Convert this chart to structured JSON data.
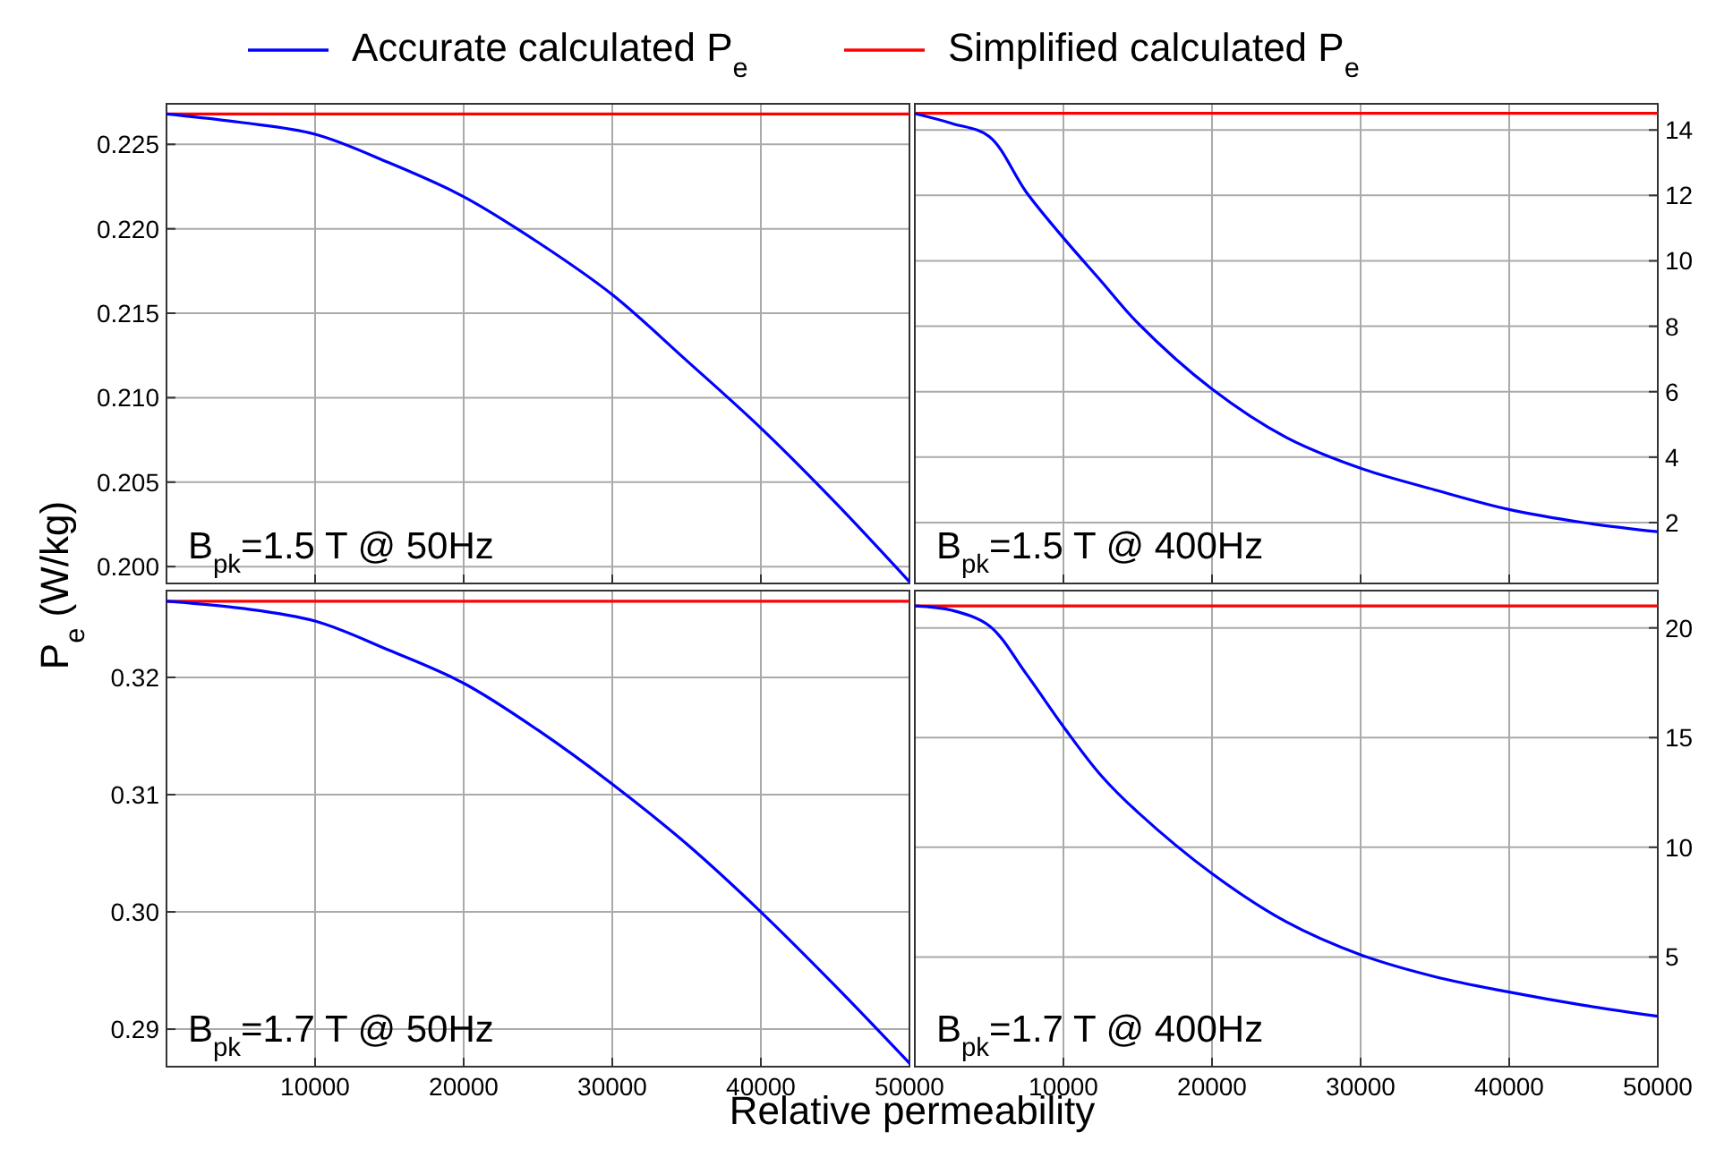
{
  "chart_data": [
    {
      "type": "line",
      "ylabel": "P$_{e}$ (W/kg)",
      "annotations": [
        "B$_{pk}$=1.5 T @ 50Hz"
      ],
      "legend": "top",
      "grid": true,
      "tick_labels": "y",
      "xlim": [
        0,
        50000
      ],
      "xticks": [
        10000,
        20000,
        30000,
        40000,
        50000
      ],
      "ylim": [
        0.199,
        0.2274
      ],
      "yticks": [
        {
          "value": 0.2,
          "label": "0.200"
        },
        0.205,
        {
          "value": 0.21,
          "label": "0.210"
        },
        0.215,
        {
          "value": 0.22,
          "label": "0.220"
        },
        0.225
      ],
      "series": [
        {
          "name": "Accurate calculated P$_{e}$",
          "color": "#0000ff",
          "x": [
            0,
            5000,
            10000,
            15000,
            20000,
            25000,
            30000,
            35000,
            40000,
            45000,
            50000
          ],
          "values": [
            0.2268,
            0.2263,
            0.2256,
            0.2239,
            0.2219,
            0.2192,
            0.2161,
            0.2122,
            0.2082,
            0.2038,
            0.1991
          ]
        },
        {
          "name": "Simplified calculated P$_{e}$",
          "color": "#ff0000",
          "x": [
            0,
            50000
          ],
          "values": [
            0.2268,
            0.2268
          ]
        }
      ]
    },
    {
      "type": "line",
      "annotations": [
        "B$_{pk}$=1.5 T @ 400Hz"
      ],
      "grid": true,
      "tick_labels": "y",
      "xlim": [
        0,
        50000
      ],
      "xticks": [
        10000,
        20000,
        30000,
        40000,
        50000
      ],
      "ylim": [
        0.14,
        14.8
      ],
      "yticks": [
        2,
        4,
        6,
        8,
        10,
        12,
        14
      ],
      "series": [
        {
          "color": "#0000ff",
          "x": [
            0,
            2500,
            5000,
            7500,
            10000,
            12500,
            15000,
            20000,
            25000,
            30000,
            35000,
            40000,
            45000,
            50000
          ],
          "values": [
            14.5,
            14.2,
            13.8,
            12.1,
            10.7,
            9.4,
            8.1,
            6.08,
            4.6,
            3.66,
            3.0,
            2.4,
            2.0,
            1.72
          ]
        },
        {
          "color": "#ff0000",
          "x": [
            0,
            50000
          ],
          "values": [
            14.51,
            14.51
          ]
        }
      ]
    },
    {
      "type": "line",
      "xlabel": "Relative permeability",
      "annotations": [
        "B$_{pk}$=1.7 T @ 50Hz"
      ],
      "grid": true,
      "xlim": [
        0,
        50000
      ],
      "xticks": [
        10000,
        20000,
        30000,
        40000,
        50000
      ],
      "ylim": [
        0.2868,
        0.3274
      ],
      "yticks": [
        0.29,
        {
          "value": 0.3,
          "label": "0.30"
        },
        0.31,
        0.32
      ],
      "series": [
        {
          "color": "#0000ff",
          "x": [
            0,
            5000,
            10000,
            15000,
            20000,
            25000,
            30000,
            35000,
            40000,
            45000,
            50000
          ],
          "values": [
            0.3265,
            0.3259,
            0.3248,
            0.3223,
            0.3195,
            0.3155,
            0.3109,
            0.3058,
            0.3,
            0.2937,
            0.2871
          ]
        },
        {
          "color": "#ff0000",
          "x": [
            0,
            50000
          ],
          "values": [
            0.3265,
            0.3265
          ]
        }
      ]
    },
    {
      "type": "line",
      "annotations": [
        "B$_{pk}$=1.7 T @ 400Hz"
      ],
      "grid": true,
      "xlim": [
        0,
        50000
      ],
      "xticks": [
        10000,
        20000,
        30000,
        40000,
        50000
      ],
      "ylim": [
        0,
        21.7
      ],
      "yticks": [
        5,
        10,
        15,
        20
      ],
      "series": [
        {
          "color": "#0000ff",
          "x": [
            0,
            2500,
            5000,
            7500,
            10000,
            12500,
            15000,
            20000,
            25000,
            30000,
            35000,
            40000,
            45000,
            50000
          ],
          "values": [
            21.0,
            20.8,
            20.1,
            17.9,
            15.5,
            13.3,
            11.6,
            8.8,
            6.6,
            5.1,
            4.1,
            3.4,
            2.8,
            2.3
          ]
        },
        {
          "color": "#ff0000",
          "x": [
            0,
            50000
          ],
          "values": [
            21.0,
            21.0
          ]
        }
      ]
    }
  ]
}
